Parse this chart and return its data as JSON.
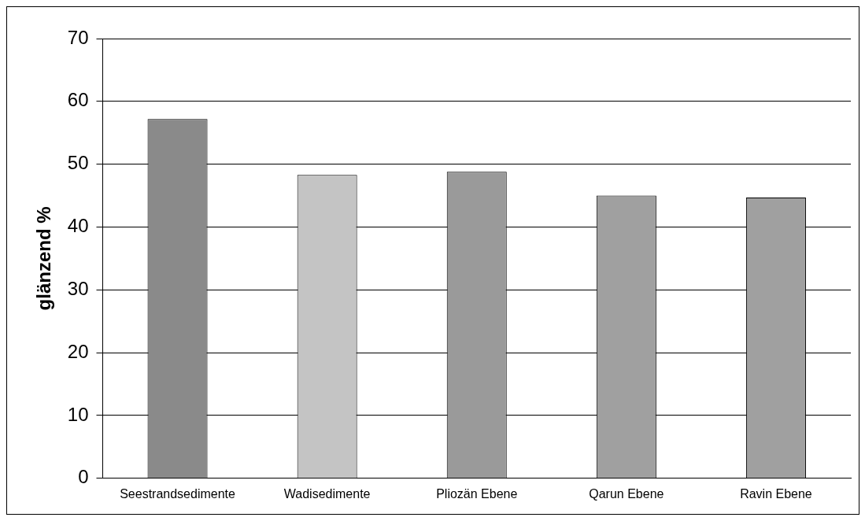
{
  "chart_data": {
    "type": "bar",
    "ylabel": "glänzend %",
    "categories": [
      "Seestrandsedimente",
      "Wadisedimente",
      "Pliozän Ebene",
      "Qarun Ebene",
      "Ravin Ebene"
    ],
    "values": [
      57.2,
      48.3,
      48.8,
      45.0,
      44.7
    ],
    "colors": [
      "#8a8a8a",
      "#c4c4c4",
      "#9a9a9a",
      "#a0a0a0",
      "#a0a0a0"
    ],
    "ylim": [
      0,
      70
    ],
    "yticks": [
      0,
      10,
      20,
      30,
      40,
      50,
      60,
      70
    ],
    "grid": "y",
    "legend": false
  }
}
